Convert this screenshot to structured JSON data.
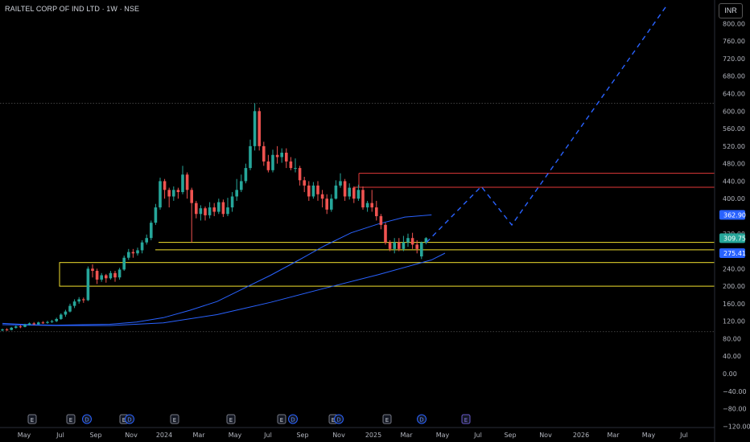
{
  "header": {
    "title": "RAILTEL CORP OF IND LTD · 1W · NSE"
  },
  "currency": "INR",
  "colors": {
    "background": "#000000",
    "up": "#26a69a",
    "down": "#ef5350",
    "ma": "#2962ff",
    "zone": "#f2e12f",
    "resistance": "#e33a3a",
    "projection": "#2962ff"
  },
  "chart_data": {
    "type": "candlestick",
    "title": "RAILTEL CORP OF IND LTD · 1W · NSE",
    "y_axis": {
      "min": -120,
      "max": 840,
      "ticks": [
        800,
        760,
        720,
        680,
        640,
        600,
        560,
        520,
        480,
        440,
        400,
        320,
        240,
        200,
        160,
        120,
        80,
        40,
        0,
        -40,
        -80,
        -120
      ]
    },
    "x_axis": {
      "ticks": [
        "May",
        "Jul",
        "Sep",
        "Nov",
        "2024",
        "Mar",
        "May",
        "Jul",
        "Sep",
        "Nov",
        "2025",
        "Mar",
        "May",
        "Jul",
        "Sep",
        "Nov",
        "2026",
        "Mar",
        "May",
        "Jul"
      ]
    },
    "price_badges": [
      {
        "value": 362.9,
        "label": "362.90",
        "color": "#2962ff"
      },
      {
        "value": 309.75,
        "label": "309.75",
        "color": "#26a69a"
      },
      {
        "value": 275.41,
        "label": "275.41",
        "color": "#2962ff"
      }
    ],
    "dotted_levels": [
      618,
      96
    ],
    "support_zones": [
      {
        "low": 200,
        "high": 254
      }
    ],
    "support_lines": [
      300,
      283
    ],
    "resistance_lines": [
      458,
      426
    ],
    "moving_averages": [
      {
        "points": [
          [
            0,
            115
          ],
          [
            10,
            112
          ],
          [
            20,
            111
          ],
          [
            30,
            112
          ],
          [
            40,
            113
          ],
          [
            50,
            118
          ],
          [
            60,
            128
          ],
          [
            70,
            145
          ],
          [
            80,
            165
          ],
          [
            90,
            195
          ],
          [
            100,
            225
          ],
          [
            110,
            258
          ],
          [
            120,
            292
          ],
          [
            130,
            322
          ],
          [
            140,
            342
          ],
          [
            150,
            358
          ],
          [
            160,
            362.9
          ]
        ]
      },
      {
        "points": [
          [
            0,
            112
          ],
          [
            20,
            110
          ],
          [
            40,
            110
          ],
          [
            60,
            116
          ],
          [
            80,
            135
          ],
          [
            100,
            163
          ],
          [
            120,
            195
          ],
          [
            140,
            226
          ],
          [
            160,
            260
          ],
          [
            165,
            275.41
          ]
        ]
      }
    ],
    "candles": [
      [
        99,
        101,
        97,
        103
      ],
      [
        101,
        100,
        98,
        104
      ],
      [
        100,
        105,
        99,
        107
      ],
      [
        105,
        108,
        103,
        110
      ],
      [
        108,
        107,
        104,
        111
      ],
      [
        107,
        112,
        106,
        114
      ],
      [
        112,
        115,
        110,
        117
      ],
      [
        115,
        113,
        111,
        118
      ],
      [
        113,
        117,
        112,
        119
      ],
      [
        117,
        116,
        114,
        120
      ],
      [
        116,
        118,
        114,
        121
      ],
      [
        118,
        120,
        116,
        123
      ],
      [
        120,
        125,
        118,
        128
      ],
      [
        125,
        135,
        123,
        138
      ],
      [
        135,
        142,
        130,
        146
      ],
      [
        142,
        155,
        140,
        160
      ],
      [
        155,
        165,
        150,
        170
      ],
      [
        165,
        170,
        160,
        175
      ],
      [
        170,
        168,
        162,
        174
      ],
      [
        168,
        240,
        166,
        245
      ],
      [
        240,
        235,
        220,
        250
      ],
      [
        235,
        215,
        205,
        240
      ],
      [
        215,
        225,
        210,
        230
      ],
      [
        225,
        218,
        208,
        228
      ],
      [
        218,
        230,
        215,
        235
      ],
      [
        230,
        220,
        210,
        235
      ],
      [
        220,
        238,
        215,
        242
      ],
      [
        238,
        265,
        235,
        270
      ],
      [
        265,
        278,
        260,
        285
      ],
      [
        278,
        275,
        265,
        285
      ],
      [
        275,
        282,
        270,
        288
      ],
      [
        282,
        300,
        275,
        305
      ],
      [
        300,
        310,
        295,
        318
      ],
      [
        310,
        345,
        305,
        350
      ],
      [
        345,
        380,
        340,
        388
      ],
      [
        380,
        440,
        375,
        448
      ],
      [
        440,
        420,
        400,
        445
      ],
      [
        420,
        405,
        380,
        425
      ],
      [
        405,
        420,
        395,
        428
      ],
      [
        420,
        415,
        400,
        425
      ],
      [
        415,
        455,
        410,
        475
      ],
      [
        455,
        420,
        400,
        460
      ],
      [
        420,
        390,
        300,
        425
      ],
      [
        390,
        365,
        355,
        395
      ],
      [
        365,
        378,
        350,
        385
      ],
      [
        378,
        362,
        350,
        382
      ],
      [
        362,
        380,
        355,
        392
      ],
      [
        380,
        370,
        360,
        390
      ],
      [
        370,
        392,
        365,
        400
      ],
      [
        392,
        365,
        358,
        398
      ],
      [
        365,
        380,
        360,
        402
      ],
      [
        380,
        405,
        370,
        415
      ],
      [
        405,
        420,
        395,
        445
      ],
      [
        420,
        440,
        415,
        455
      ],
      [
        440,
        470,
        435,
        480
      ],
      [
        470,
        520,
        465,
        535
      ],
      [
        520,
        600,
        510,
        618
      ],
      [
        600,
        520,
        510,
        608
      ],
      [
        520,
        485,
        475,
        530
      ],
      [
        485,
        465,
        460,
        500
      ],
      [
        465,
        500,
        460,
        512
      ],
      [
        500,
        495,
        480,
        520
      ],
      [
        495,
        505,
        482,
        515
      ],
      [
        505,
        485,
        470,
        515
      ],
      [
        485,
        470,
        465,
        495
      ],
      [
        470,
        470,
        460,
        492
      ],
      [
        470,
        442,
        430,
        475
      ],
      [
        442,
        430,
        415,
        450
      ],
      [
        430,
        405,
        395,
        440
      ],
      [
        405,
        430,
        400,
        438
      ],
      [
        430,
        410,
        395,
        440
      ],
      [
        410,
        400,
        380,
        420
      ],
      [
        400,
        375,
        365,
        410
      ],
      [
        375,
        400,
        370,
        410
      ],
      [
        400,
        430,
        398,
        442
      ],
      [
        430,
        440,
        425,
        458
      ],
      [
        440,
        405,
        395,
        445
      ],
      [
        405,
        425,
        398,
        435
      ],
      [
        425,
        400,
        390,
        428
      ],
      [
        400,
        420,
        395,
        432
      ],
      [
        420,
        380,
        375,
        428
      ],
      [
        380,
        390,
        370,
        395
      ],
      [
        390,
        380,
        370,
        420
      ],
      [
        380,
        360,
        350,
        395
      ],
      [
        360,
        340,
        330,
        365
      ],
      [
        340,
        300,
        295,
        345
      ],
      [
        300,
        285,
        280,
        305
      ],
      [
        285,
        300,
        275,
        310
      ],
      [
        300,
        285,
        280,
        310
      ],
      [
        285,
        300,
        280,
        315
      ],
      [
        300,
        310,
        290,
        320
      ],
      [
        310,
        295,
        285,
        322
      ],
      [
        295,
        285,
        275,
        305
      ],
      [
        268,
        300,
        262,
        302
      ],
      [
        300,
        309.75,
        296,
        312
      ]
    ],
    "projection": [
      [
        530,
        300
      ],
      [
        598,
        428
      ],
      [
        636,
        340
      ],
      [
        828,
        840
      ]
    ]
  },
  "events": [
    "E",
    "E",
    "D",
    "E",
    "D",
    "E",
    "E",
    "E",
    "D",
    "E",
    "D",
    "E",
    "D",
    "E"
  ]
}
